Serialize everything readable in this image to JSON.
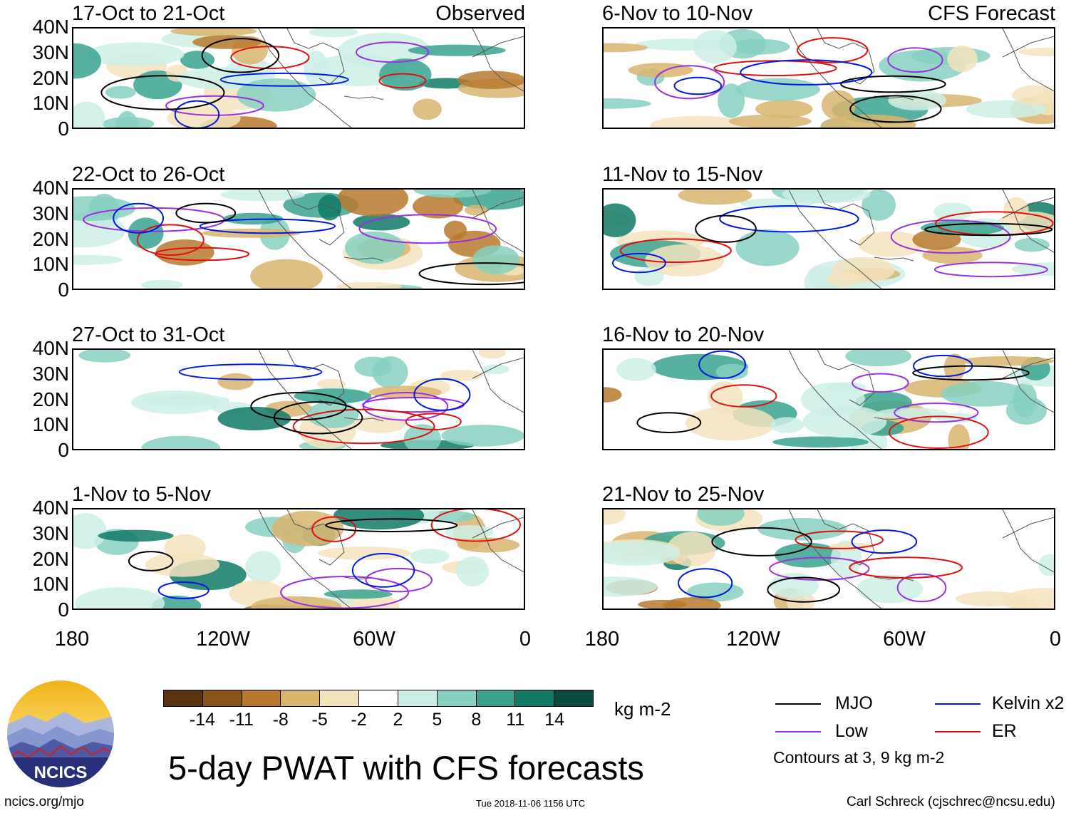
{
  "panels": [
    {
      "id": "p1",
      "title": "17-Oct to 21-Oct",
      "label": "Observed"
    },
    {
      "id": "p2",
      "title": "6-Nov to 10-Nov",
      "label": "CFS Forecast"
    },
    {
      "id": "p3",
      "title": "22-Oct to 26-Oct",
      "label": ""
    },
    {
      "id": "p4",
      "title": "11-Nov to 15-Nov",
      "label": ""
    },
    {
      "id": "p5",
      "title": "27-Oct to 31-Oct",
      "label": ""
    },
    {
      "id": "p6",
      "title": "16-Nov to 20-Nov",
      "label": ""
    },
    {
      "id": "p7",
      "title": "1-Nov to 5-Nov",
      "label": ""
    },
    {
      "id": "p8",
      "title": "21-Nov to 25-Nov",
      "label": ""
    }
  ],
  "y_ticks": [
    "40N",
    "30N",
    "20N",
    "10N",
    "0"
  ],
  "x_ticks": [
    "180",
    "120W",
    "60W",
    "0"
  ],
  "colorbar": {
    "colors": [
      "#5a3310",
      "#8a5418",
      "#b8792e",
      "#d9b56e",
      "#f3e3bd",
      "#ffffff",
      "#cdeee6",
      "#86d0c0",
      "#3aa390",
      "#117a67",
      "#0a4a3c"
    ],
    "ticks": [
      "-14",
      "-11",
      "-8",
      "-5",
      "-2",
      "2",
      "5",
      "8",
      "11",
      "14"
    ],
    "units": "kg m-2"
  },
  "title": "5-day PWAT with CFS forecasts",
  "legend": {
    "items": [
      {
        "name": "MJO",
        "color": "#000000"
      },
      {
        "name": "Kelvin x2",
        "color": "#0018e0"
      },
      {
        "name": "Low",
        "color": "#9b30e0"
      },
      {
        "name": "ER",
        "color": "#e01010"
      }
    ],
    "note": "Contours at 3, 9 kg m-2"
  },
  "footer": {
    "left": "ncics.org/mjo",
    "center": "Tue 2018-11-06 1156 UTC",
    "right": "Carl Schreck (cjschrec@ncsu.edu)"
  },
  "logo_text": "NCICS"
}
